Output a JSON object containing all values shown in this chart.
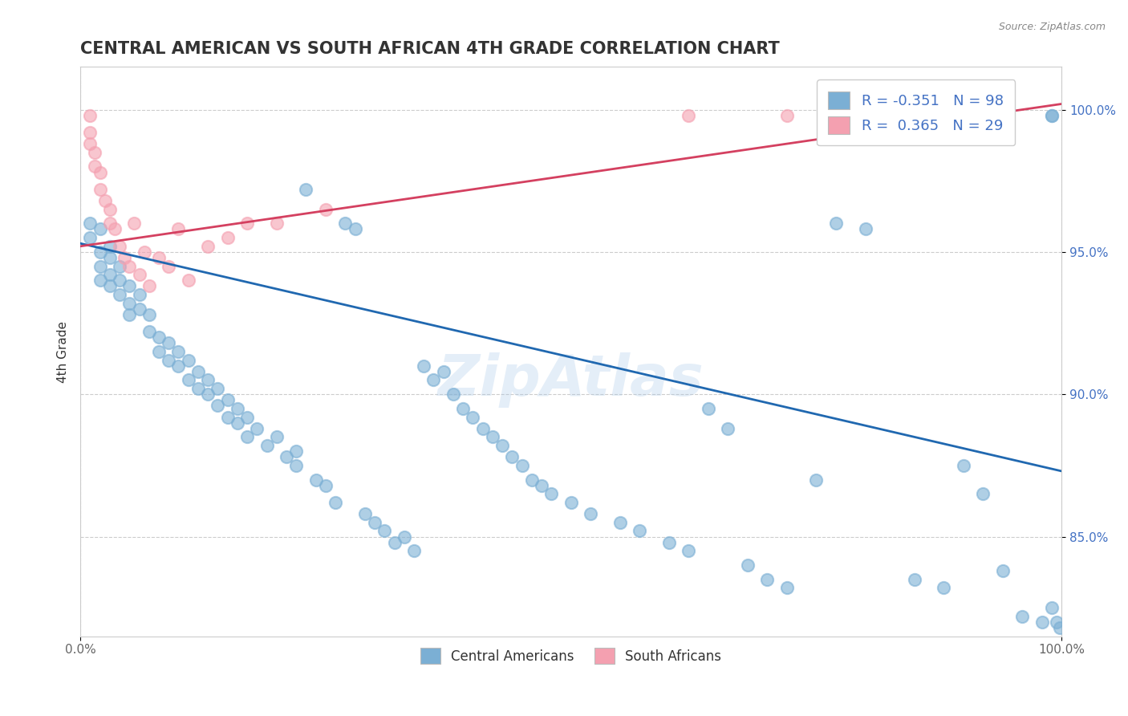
{
  "title": "CENTRAL AMERICAN VS SOUTH AFRICAN 4TH GRADE CORRELATION CHART",
  "source": "Source: ZipAtlas.com",
  "ylabel": "4th Grade",
  "xlim": [
    0.0,
    1.0
  ],
  "ylim": [
    0.815,
    1.015
  ],
  "yticks": [
    0.85,
    0.9,
    0.95,
    1.0
  ],
  "ytick_labels": [
    "85.0%",
    "90.0%",
    "95.0%",
    "100.0%"
  ],
  "xtick_labels": [
    "0.0%",
    "100.0%"
  ],
  "legend_r1": "R = -0.351",
  "legend_n1": "N = 98",
  "legend_r2": "R =  0.365",
  "legend_n2": "N = 29",
  "blue_color": "#7bafd4",
  "pink_color": "#f4a0b0",
  "blue_line_color": "#2068b0",
  "pink_line_color": "#d44060",
  "legend_label1": "Central Americans",
  "legend_label2": "South Africans",
  "watermark": "ZipAtlas",
  "blue_scatter_x": [
    0.01,
    0.01,
    0.02,
    0.02,
    0.02,
    0.02,
    0.03,
    0.03,
    0.03,
    0.03,
    0.04,
    0.04,
    0.04,
    0.05,
    0.05,
    0.05,
    0.06,
    0.06,
    0.07,
    0.07,
    0.08,
    0.08,
    0.09,
    0.09,
    0.1,
    0.1,
    0.11,
    0.11,
    0.12,
    0.12,
    0.13,
    0.13,
    0.14,
    0.14,
    0.15,
    0.15,
    0.16,
    0.16,
    0.17,
    0.17,
    0.18,
    0.19,
    0.2,
    0.21,
    0.22,
    0.22,
    0.23,
    0.24,
    0.25,
    0.26,
    0.27,
    0.28,
    0.29,
    0.3,
    0.31,
    0.32,
    0.33,
    0.34,
    0.35,
    0.36,
    0.37,
    0.38,
    0.39,
    0.4,
    0.41,
    0.42,
    0.43,
    0.44,
    0.45,
    0.46,
    0.47,
    0.48,
    0.5,
    0.52,
    0.55,
    0.57,
    0.6,
    0.62,
    0.64,
    0.66,
    0.68,
    0.7,
    0.72,
    0.75,
    0.77,
    0.8,
    0.85,
    0.88,
    0.9,
    0.92,
    0.94,
    0.96,
    0.98,
    0.99,
    0.99,
    0.99,
    0.995,
    0.998
  ],
  "blue_scatter_y": [
    0.96,
    0.955,
    0.95,
    0.945,
    0.94,
    0.958,
    0.952,
    0.948,
    0.942,
    0.938,
    0.945,
    0.94,
    0.935,
    0.938,
    0.932,
    0.928,
    0.935,
    0.93,
    0.928,
    0.922,
    0.92,
    0.915,
    0.918,
    0.912,
    0.915,
    0.91,
    0.912,
    0.905,
    0.908,
    0.902,
    0.905,
    0.9,
    0.902,
    0.896,
    0.898,
    0.892,
    0.895,
    0.89,
    0.892,
    0.885,
    0.888,
    0.882,
    0.885,
    0.878,
    0.88,
    0.875,
    0.972,
    0.87,
    0.868,
    0.862,
    0.96,
    0.958,
    0.858,
    0.855,
    0.852,
    0.848,
    0.85,
    0.845,
    0.91,
    0.905,
    0.908,
    0.9,
    0.895,
    0.892,
    0.888,
    0.885,
    0.882,
    0.878,
    0.875,
    0.87,
    0.868,
    0.865,
    0.862,
    0.858,
    0.855,
    0.852,
    0.848,
    0.845,
    0.895,
    0.888,
    0.84,
    0.835,
    0.832,
    0.87,
    0.96,
    0.958,
    0.835,
    0.832,
    0.875,
    0.865,
    0.838,
    0.822,
    0.82,
    0.825,
    0.998,
    0.998,
    0.82,
    0.818
  ],
  "pink_scatter_x": [
    0.01,
    0.01,
    0.01,
    0.015,
    0.015,
    0.02,
    0.02,
    0.025,
    0.03,
    0.03,
    0.035,
    0.04,
    0.045,
    0.05,
    0.055,
    0.06,
    0.065,
    0.07,
    0.08,
    0.09,
    0.1,
    0.11,
    0.13,
    0.15,
    0.17,
    0.2,
    0.25,
    0.62,
    0.72
  ],
  "pink_scatter_y": [
    0.998,
    0.992,
    0.988,
    0.985,
    0.98,
    0.978,
    0.972,
    0.968,
    0.965,
    0.96,
    0.958,
    0.952,
    0.948,
    0.945,
    0.96,
    0.942,
    0.95,
    0.938,
    0.948,
    0.945,
    0.958,
    0.94,
    0.952,
    0.955,
    0.96,
    0.96,
    0.965,
    0.998,
    0.998
  ],
  "blue_trend_x": [
    0.0,
    1.0
  ],
  "blue_trend_y": [
    0.953,
    0.873
  ],
  "pink_trend_x": [
    0.0,
    1.0
  ],
  "pink_trend_y": [
    0.952,
    1.002
  ]
}
